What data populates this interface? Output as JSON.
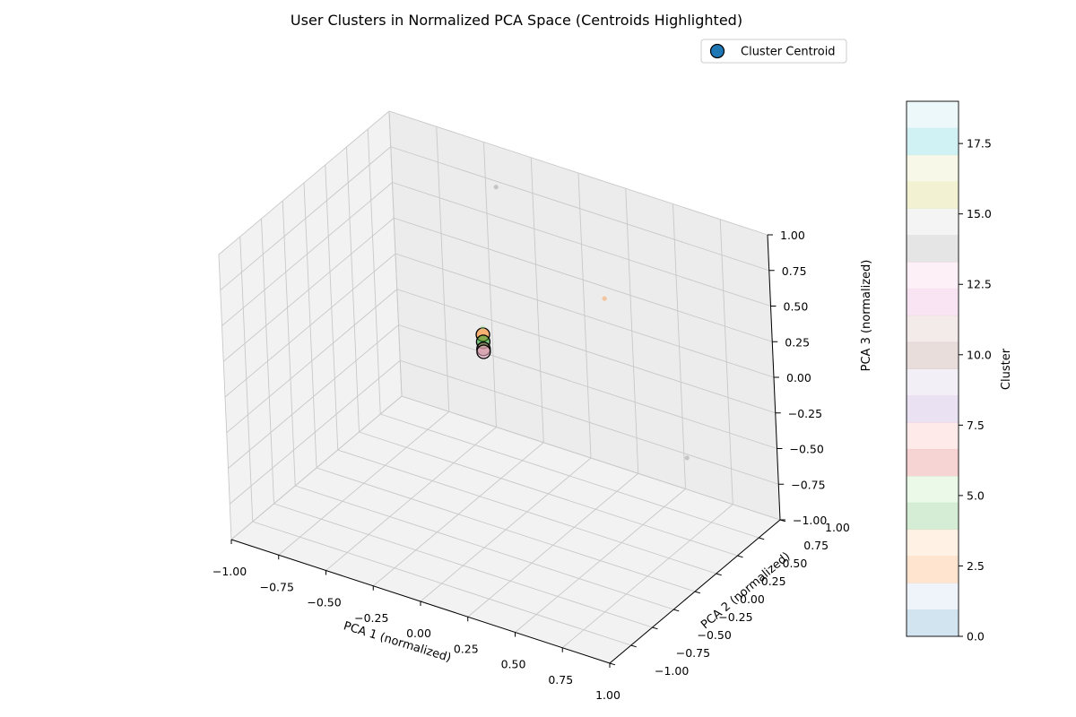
{
  "chart_data": {
    "type": "scatter",
    "title": "User Clusters in Normalized PCA Space (Centroids Highlighted)",
    "xlabel": "PCA 1 (normalized)",
    "ylabel": "PCA 2 (normalized)",
    "zlabel": "PCA 3 (normalized)",
    "projection": "3d",
    "xlim": [
      -1,
      1
    ],
    "ylim": [
      -1,
      1
    ],
    "zlim": [
      -1,
      1
    ],
    "xticks": [
      "−1.00",
      "−0.75",
      "−0.50",
      "−0.25",
      "0.00",
      "0.25",
      "0.50",
      "0.75",
      "1.00"
    ],
    "yticks": [
      "−1.00",
      "−0.75",
      "−0.50",
      "−0.25",
      "0.00",
      "0.25",
      "0.50",
      "0.75",
      "1.00"
    ],
    "zticks": [
      "−1.00",
      "−0.75",
      "−0.50",
      "−0.25",
      "0.00",
      "0.25",
      "0.50",
      "0.75",
      "1.00"
    ],
    "grid": true,
    "legend": {
      "placement": "top-right",
      "entries": [
        {
          "label": "Cluster Centroid",
          "color": "#1f77b4"
        }
      ]
    },
    "colorbar": {
      "label": "Cluster",
      "range": [
        0,
        19
      ],
      "ticks": [
        "0.0",
        "2.5",
        "5.0",
        "7.5",
        "10.0",
        "12.5",
        "15.0",
        "17.5"
      ],
      "colormap": "tab20",
      "alpha": 0.2,
      "colors": [
        "#1f77b4",
        "#aec7e8",
        "#ff7f0e",
        "#ffbb78",
        "#2ca02c",
        "#98df8a",
        "#d62728",
        "#ff9896",
        "#9467bd",
        "#c5b0d5",
        "#8c564b",
        "#c49c94",
        "#e377c2",
        "#f7b6d2",
        "#7f7f7f",
        "#c7c7c7",
        "#bcbd22",
        "#dbdb8d",
        "#17becf",
        "#9edae5"
      ]
    },
    "series": [
      {
        "name": "Cluster Centroid",
        "points": [
          {
            "x": -0.1,
            "y": 0.05,
            "z": 0.3,
            "cluster": 2
          },
          {
            "x": -0.1,
            "y": 0.05,
            "z": 0.25,
            "cluster": 4
          },
          {
            "x": -0.1,
            "y": 0.05,
            "z": 0.2,
            "cluster": 10
          },
          {
            "x": -0.1,
            "y": 0.05,
            "z": 0.18,
            "cluster": 13
          }
        ]
      },
      {
        "name": "points",
        "points": [
          {
            "x": -0.35,
            "y": 0.8,
            "z": 0.85,
            "cluster": 14
          },
          {
            "x": 0.3,
            "y": 0.6,
            "z": 0.45,
            "cluster": 2
          },
          {
            "x": -0.1,
            "y": 0.05,
            "z": 0.35,
            "cluster": 5
          },
          {
            "x": 0.8,
            "y": 0.4,
            "z": -0.35,
            "cluster": 14
          }
        ]
      }
    ]
  }
}
